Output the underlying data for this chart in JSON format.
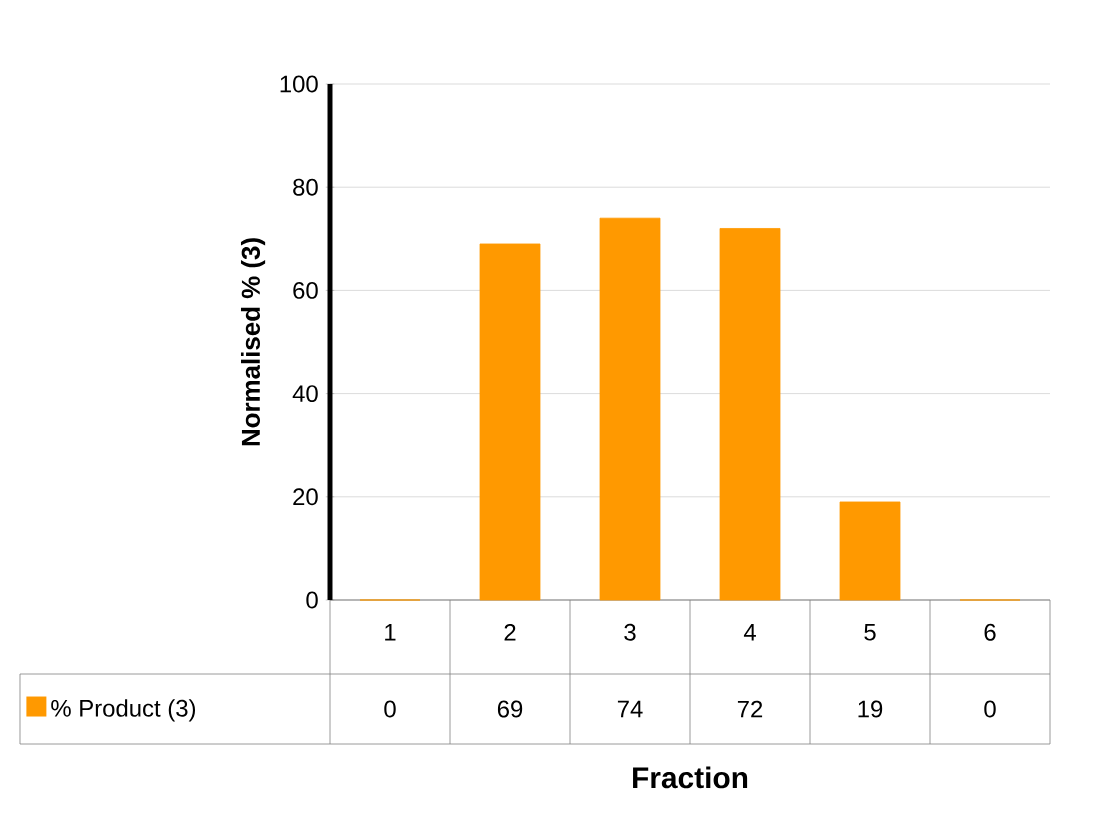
{
  "chart_data": {
    "type": "bar",
    "xlabel": "Fraction",
    "ylabel": "Normalised % (3)",
    "categories": [
      "1",
      "2",
      "3",
      "4",
      "5",
      "6"
    ],
    "series": [
      {
        "name": "% Product (3)",
        "color": "#ff9900",
        "values": [
          0,
          69,
          74,
          72,
          19,
          0
        ]
      }
    ],
    "ylim": [
      0,
      100
    ],
    "yticks": [
      0,
      20,
      40,
      60,
      80,
      100
    ],
    "grid": "y",
    "data_labels": true,
    "legend": "bottom"
  }
}
